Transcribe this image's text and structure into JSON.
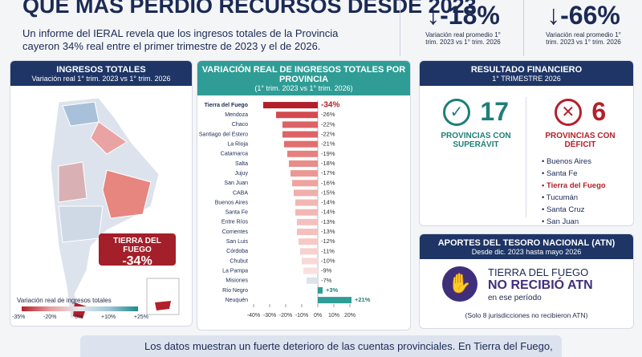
{
  "header": {
    "title": "QUE MÁS PERDIÓ RECURSOS DESDE 2023",
    "subtitle": "Un informe del IERAL revela que los ingresos totales de la Provincia cayeron 34% real entre el primer trimestre de 2023 y el de 2026."
  },
  "stats": [
    {
      "value": "-18%",
      "label": "Variación real promedio 1° trim. 2023 vs 1° trim. 2026"
    },
    {
      "value": "-66%",
      "label": "Variación real promedio 1° trim. 2023 vs 1° trim. 2026"
    }
  ],
  "map_panel": {
    "title": "INGRESOS TOTALES",
    "subtitle": "Variación real 1° trim. 2023 vs 1° trim. 2026",
    "callout_name": "TIERRA DEL FUEGO",
    "callout_value": "-34%",
    "legend_title": "Variación real de ingresos totales",
    "legend_ticks": [
      "-35%",
      "-20%",
      "0%",
      "+10%",
      "+25%"
    ]
  },
  "chart_data": {
    "type": "hbar",
    "title": "VARIACIÓN REAL DE INGRESOS TOTALES POR PROVINCIA",
    "subtitle": "(1° trim. 2023 vs 1° trim. 2026)",
    "categories": [
      "Tierra del Fuego",
      "Mendoza",
      "Chaco",
      "Santiago del Estero",
      "La Rioja",
      "Catamarca",
      "Salta",
      "Jujuy",
      "San Juan",
      "CABA",
      "Buenos Aires",
      "Santa Fe",
      "Entre Ríos",
      "Corrientes",
      "San Luis",
      "Córdoba",
      "Chubut",
      "La Pampa",
      "Misiones",
      "Río Negro",
      "Neuquén"
    ],
    "values": [
      -34,
      -26,
      -22,
      -22,
      -21,
      -19,
      -18,
      -17,
      -16,
      -15,
      -14,
      -14,
      -13,
      -13,
      -12,
      -11,
      -10,
      -9,
      -7,
      3,
      21
    ],
    "value_labels": [
      "-34%",
      "-26%",
      "-22%",
      "-22%",
      "-21%",
      "-19%",
      "-18%",
      "-17%",
      "-16%",
      "-15%",
      "-14%",
      "-14%",
      "-13%",
      "-13%",
      "-12%",
      "-11%",
      "-10%",
      "-9%",
      "-7%",
      "+3%",
      "+21%"
    ],
    "colors": [
      "#b3202a",
      "#d14a4f",
      "#dc6366",
      "#dc6366",
      "#e0706f",
      "#e5817f",
      "#e88d8a",
      "#eb9895",
      "#ee a3a0",
      "#f0aeab",
      "#f2b7b4",
      "#f2b7b4",
      "#f4c0bd",
      "#f4c0bd",
      "#f6c9c6",
      "#f7d1cf",
      "#f8d9d7",
      "#f9e0de",
      "#dde3e8",
      "#2f9d96",
      "#2f9d96"
    ],
    "xlim": [
      -42,
      23
    ],
    "xticks": [
      {
        "value": -40,
        "label": "-40%"
      },
      {
        "value": -30,
        "label": "-30%"
      },
      {
        "value": -20,
        "label": "-20%"
      },
      {
        "value": -10,
        "label": "-10%"
      },
      {
        "value": 0,
        "label": "0%"
      },
      {
        "value": 10,
        "label": "10%"
      },
      {
        "value": 20,
        "label": "20%"
      }
    ]
  },
  "financial": {
    "title": "RESULTADO FINANCIERO",
    "subtitle": "1° TRIMESTRE 2026",
    "surplus_count": "17",
    "surplus_label": "PROVINCIAS CON SUPERÁVIT",
    "deficit_count": "6",
    "deficit_label": "PROVINCIAS CON DÉFICIT",
    "deficit_list": [
      "Buenos Aires",
      "Santa Fe",
      "Tierra del Fuego",
      "Tucumán",
      "Santa Cruz",
      "San Juan"
    ]
  },
  "atn": {
    "title": "APORTES DEL TESORO NACIONAL (ATN)",
    "subtitle": "Desde dic. 2023 hasta mayo 2026",
    "name": "TIERRA DEL FUEGO",
    "headline": "NO RECIBIÓ ATN",
    "period": "en ese período",
    "note": "(Solo 8 jurisdicciones no recibieron ATN)"
  },
  "footer": {
    "text": "Los datos muestran un fuerte deterioro de las cuentas provinciales. En Tierra del Fuego,"
  }
}
